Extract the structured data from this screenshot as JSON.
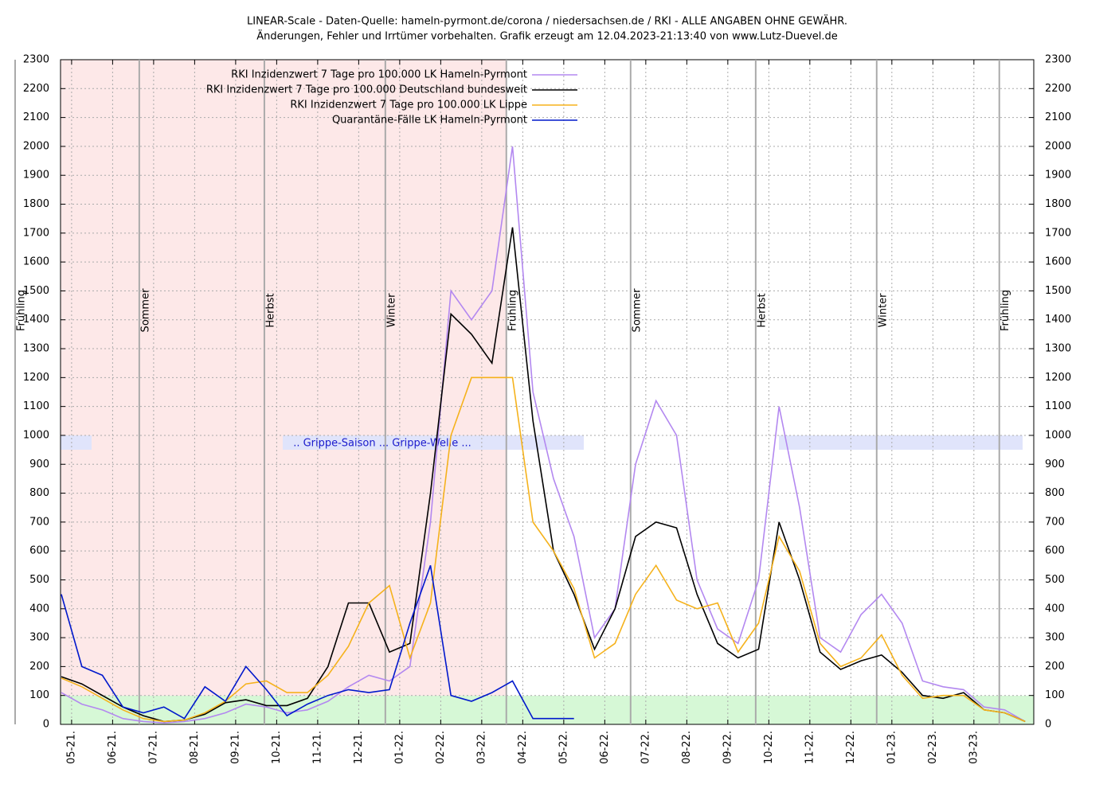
{
  "chart_data": {
    "type": "line",
    "title": "LINEAR-Scale - Daten-Quelle: hameln-pyrmont.de/corona / niedersachsen.de / RKI - ALLE ANGABEN OHNE GEWÄHR.",
    "subtitle": "Änderungen, Fehler und Irrtümer vorbehalten. Grafik erzeugt am 12.04.2023-21:13:40 von www.Lutz-Duevel.de",
    "annotation": ".. Grippe-Saison ... Grippe-Welle ...",
    "x": [
      -0.25,
      0.25,
      0.75,
      1.25,
      1.75,
      2.25,
      2.75,
      3.25,
      3.75,
      4.25,
      4.75,
      5.25,
      5.75,
      6.25,
      6.75,
      7.25,
      7.75,
      8.25,
      8.75,
      9.25,
      9.75,
      10.25,
      10.75,
      11.25,
      11.75,
      12.25,
      12.75,
      13.25,
      13.75,
      14.25,
      14.75,
      15.25,
      15.75,
      16.25,
      16.75,
      17.25,
      17.75,
      18.25,
      18.75,
      19.25,
      19.75,
      20.25,
      20.75,
      21.25,
      21.75,
      22.25,
      22.75,
      23.25
    ],
    "series": [
      {
        "name": "RKI Inzidenzwert 7 Tage pro 100.000 LK Hameln-Pyrmont",
        "color": "#b388f0",
        "values": [
          110,
          70,
          50,
          20,
          10,
          5,
          10,
          20,
          40,
          70,
          60,
          40,
          50,
          80,
          130,
          170,
          150,
          200,
          700,
          1500,
          1400,
          1500,
          2000,
          1150,
          850,
          650,
          300,
          400,
          900,
          1120,
          1000,
          500,
          330,
          280,
          500,
          1100,
          750,
          300,
          250,
          380,
          450,
          350,
          150,
          130,
          120,
          60,
          50,
          10
        ]
      },
      {
        "name": "RKI Inzidenzwert 7 Tage pro 100.000 Deutschland bundesweit",
        "color": "#000000",
        "values": [
          165,
          140,
          100,
          60,
          30,
          10,
          15,
          35,
          75,
          85,
          65,
          65,
          90,
          200,
          420,
          420,
          250,
          280,
          800,
          1420,
          1350,
          1250,
          1720,
          1050,
          600,
          450,
          260,
          400,
          650,
          700,
          680,
          450,
          280,
          230,
          260,
          700,
          500,
          250,
          190,
          220,
          240,
          180,
          100,
          90,
          110,
          50,
          40,
          10
        ]
      },
      {
        "name": "RKI Inzidenzwert 7 Tage pro 100.000 LK Lippe",
        "color": "#f5b21c",
        "values": [
          160,
          130,
          90,
          50,
          20,
          10,
          15,
          40,
          80,
          140,
          150,
          110,
          110,
          170,
          270,
          420,
          480,
          230,
          420,
          1000,
          1200,
          1200,
          1200,
          700,
          600,
          470,
          230,
          280,
          450,
          550,
          430,
          400,
          420,
          250,
          350,
          650,
          530,
          280,
          200,
          230,
          310,
          170,
          90,
          100,
          100,
          50,
          40,
          10
        ]
      },
      {
        "name": "Quarantäne-Fälle LK Hameln-Pyrmont",
        "color": "#0018cc",
        "values": [
          450,
          200,
          170,
          60,
          40,
          60,
          20,
          130,
          80,
          200,
          120,
          30,
          70,
          100,
          120,
          110,
          120,
          350,
          550,
          100,
          80,
          110,
          150,
          20,
          20,
          20,
          null,
          null,
          null,
          null,
          null,
          null,
          null,
          null,
          null,
          null,
          null,
          null,
          null,
          null,
          null,
          null,
          null,
          null,
          null,
          null,
          null,
          null
        ]
      }
    ],
    "seasons": [
      {
        "label": "Frühling",
        "x": -1.36
      },
      {
        "label": "Sommer",
        "x": 1.65
      },
      {
        "label": "Herbst",
        "x": 4.7
      },
      {
        "label": "Winter",
        "x": 7.65
      },
      {
        "label": "Frühling",
        "x": 10.6
      },
      {
        "label": "Sommer",
        "x": 13.63
      },
      {
        "label": "Herbst",
        "x": 16.68
      },
      {
        "label": "Winter",
        "x": 19.63
      },
      {
        "label": "Frühling",
        "x": 22.62
      }
    ],
    "xlim": [
      -0.27,
      23.46
    ],
    "xticks": [
      {
        "value": 0,
        "label": "05-21."
      },
      {
        "value": 1,
        "label": "06-21."
      },
      {
        "value": 2,
        "label": "07-21."
      },
      {
        "value": 3,
        "label": "08-21."
      },
      {
        "value": 4,
        "label": "09-21."
      },
      {
        "value": 5,
        "label": "10-21."
      },
      {
        "value": 6,
        "label": "11-21."
      },
      {
        "value": 7,
        "label": "12-21."
      },
      {
        "value": 8,
        "label": "01-22."
      },
      {
        "value": 9,
        "label": "02-22."
      },
      {
        "value": 10,
        "label": "03-22."
      },
      {
        "value": 11,
        "label": "04-22."
      },
      {
        "value": 12,
        "label": "05-22."
      },
      {
        "value": 13,
        "label": "06-22."
      },
      {
        "value": 14,
        "label": "07-22."
      },
      {
        "value": 15,
        "label": "08-22."
      },
      {
        "value": 16,
        "label": "09-22."
      },
      {
        "value": 17,
        "label": "10-22."
      },
      {
        "value": 18,
        "label": "11-22."
      },
      {
        "value": 19,
        "label": "12-22."
      },
      {
        "value": 20,
        "label": "01-23."
      },
      {
        "value": 21,
        "label": "02-23."
      },
      {
        "value": 22,
        "label": "03-23."
      }
    ],
    "ylim": [
      0,
      2300
    ],
    "yticks": [
      0,
      100,
      200,
      300,
      400,
      500,
      600,
      700,
      800,
      900,
      1000,
      1100,
      1200,
      1300,
      1400,
      1500,
      1600,
      1700,
      1800,
      1900,
      2000,
      2100,
      2200,
      2300
    ],
    "grid": true
  }
}
